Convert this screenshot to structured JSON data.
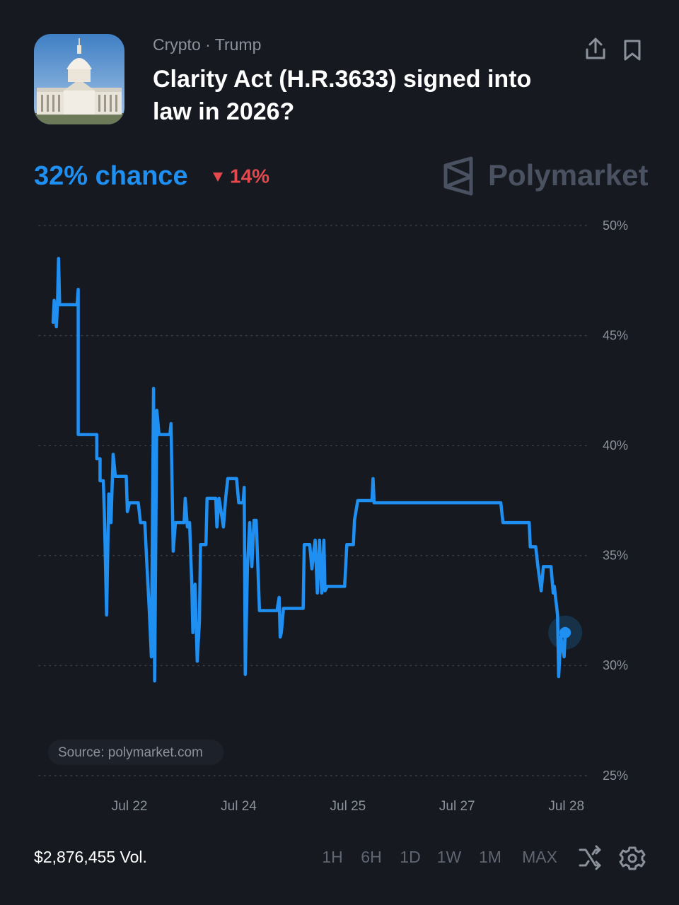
{
  "header": {
    "category": "Crypto · Trump",
    "title_lines": [
      "Clarity Act (H.R.3633) signed into",
      "law in 2026?"
    ],
    "headline": "32% chance",
    "change": "14%",
    "brand": "Polymarket"
  },
  "chart_data": {
    "type": "line",
    "color": "#1f8ff2",
    "source": "Source: polymarket.com",
    "x": [
      0.3,
      0.31,
      0.33,
      0.34,
      0.35,
      0.36,
      0.52,
      0.53,
      0.53,
      0.7,
      0.7,
      0.73,
      0.73,
      0.76,
      0.77,
      0.79,
      0.81,
      0.83,
      0.85,
      0.87,
      0.97,
      0.98,
      1.0,
      1.08,
      1.1,
      1.14,
      1.16,
      1.18,
      1.2,
      1.22,
      1.23,
      1.25,
      1.27,
      1.37,
      1.38,
      1.4,
      1.42,
      1.5,
      1.51,
      1.53,
      1.55,
      1.57,
      1.58,
      1.6,
      1.62,
      1.64,
      1.65,
      1.7,
      1.71,
      1.79,
      1.8,
      1.82,
      1.86,
      1.88,
      1.9,
      1.98,
      2.0,
      2.04,
      2.05,
      2.06,
      2.08,
      2.1,
      2.12,
      2.14,
      2.16,
      2.19,
      2.35,
      2.37,
      2.38,
      2.39,
      2.41,
      2.59,
      2.6,
      2.65,
      2.67,
      2.7,
      2.72,
      2.74,
      2.76,
      2.78,
      2.79,
      2.81,
      2.97,
      2.99,
      3.05,
      3.06,
      3.09,
      3.22,
      3.23,
      3.24,
      4.4,
      4.42,
      4.66,
      4.67,
      4.72,
      4.74,
      4.77,
      4.79,
      4.86,
      4.88,
      4.89,
      4.92,
      4.93,
      4.95,
      4.98,
      4.99
    ],
    "values": [
      45.6,
      46.6,
      45.4,
      46.4,
      48.5,
      46.4,
      46.4,
      47.1,
      40.5,
      40.5,
      39.4,
      39.4,
      38.4,
      38.4,
      36.8,
      32.3,
      37.8,
      36.5,
      39.6,
      38.6,
      38.6,
      37.0,
      37.4,
      37.4,
      36.5,
      36.5,
      34.5,
      32.6,
      30.4,
      42.6,
      29.3,
      41.6,
      40.5,
      40.5,
      41.0,
      35.2,
      36.5,
      36.5,
      37.6,
      36.3,
      36.5,
      33.7,
      31.5,
      33.7,
      30.2,
      32.0,
      35.5,
      35.5,
      37.6,
      37.6,
      36.3,
      37.6,
      36.3,
      37.6,
      38.5,
      38.5,
      37.4,
      37.4,
      38.1,
      29.6,
      34.5,
      36.5,
      34.5,
      36.6,
      36.6,
      32.5,
      32.5,
      33.1,
      31.3,
      31.5,
      32.6,
      32.6,
      35.5,
      35.5,
      34.4,
      35.7,
      33.3,
      35.7,
      33.3,
      35.7,
      33.4,
      33.6,
      33.6,
      35.5,
      35.5,
      36.6,
      37.5,
      37.5,
      38.5,
      37.4,
      37.4,
      36.5,
      36.5,
      35.4,
      35.4,
      34.5,
      33.4,
      34.5,
      34.5,
      33.3,
      33.6,
      32.3,
      29.5,
      31.3,
      30.4,
      31.5
    ],
    "xlim": [
      0.17,
      5.19
    ],
    "xticks": [
      {
        "value": 1,
        "label": "Jul 22"
      },
      {
        "value": 2,
        "label": "Jul 24"
      },
      {
        "value": 3,
        "label": "Jul 25"
      },
      {
        "value": 4,
        "label": "Jul 27"
      },
      {
        "value": 5,
        "label": "Jul 28"
      }
    ],
    "ylim": [
      25,
      50
    ],
    "yticks": [
      {
        "value": 50,
        "label": "50%"
      },
      {
        "value": 45,
        "label": "45%"
      },
      {
        "value": 40,
        "label": "40%"
      },
      {
        "value": 35,
        "label": "35%"
      },
      {
        "value": 30,
        "label": "30%"
      },
      {
        "value": 25,
        "label": "25%"
      }
    ],
    "grid": true
  },
  "footer": {
    "volume": "$2,876,455 Vol.",
    "ranges": [
      "1H",
      "6H",
      "1D",
      "1W",
      "1M",
      "MAX"
    ]
  }
}
